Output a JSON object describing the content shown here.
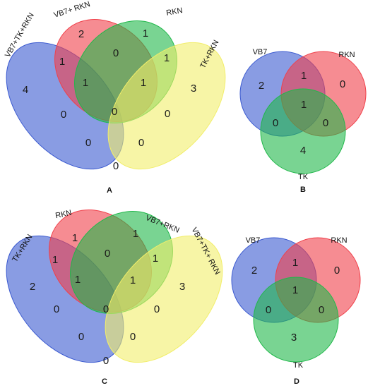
{
  "colors": {
    "blue": "#3b5ad0",
    "red": "#f0404a",
    "green": "#20b84a",
    "yellow": "#f2ee6a"
  },
  "panels": {
    "A": {
      "letter": "A",
      "sets": [
        "VB7+TK+RKN",
        "VB7+ RKN",
        "RKN",
        "TK+RKN"
      ],
      "counts": [
        "2",
        "1",
        "3",
        "4",
        "0",
        "1",
        "1",
        "1",
        "0",
        "1",
        "0",
        "0",
        "0",
        "0",
        "0"
      ]
    },
    "B": {
      "letter": "B",
      "sets": [
        "VB7",
        "RKN",
        "TK"
      ],
      "counts": [
        "2",
        "0",
        "1",
        "4",
        "0",
        "0",
        "1"
      ]
    },
    "C": {
      "letter": "C",
      "sets": [
        "TK+RKN",
        "RKN",
        "VB7+RKN",
        "VB7+TK+ RKN"
      ],
      "counts": [
        "1",
        "1",
        "3",
        "2",
        "0",
        "1",
        "1",
        "1",
        "0",
        "1",
        "0",
        "0",
        "0",
        "0",
        "0"
      ]
    },
    "D": {
      "letter": "D",
      "sets": [
        "VB7",
        "RKN",
        "TK"
      ],
      "counts": [
        "2",
        "0",
        "1",
        "3",
        "0",
        "0",
        "1"
      ]
    }
  }
}
